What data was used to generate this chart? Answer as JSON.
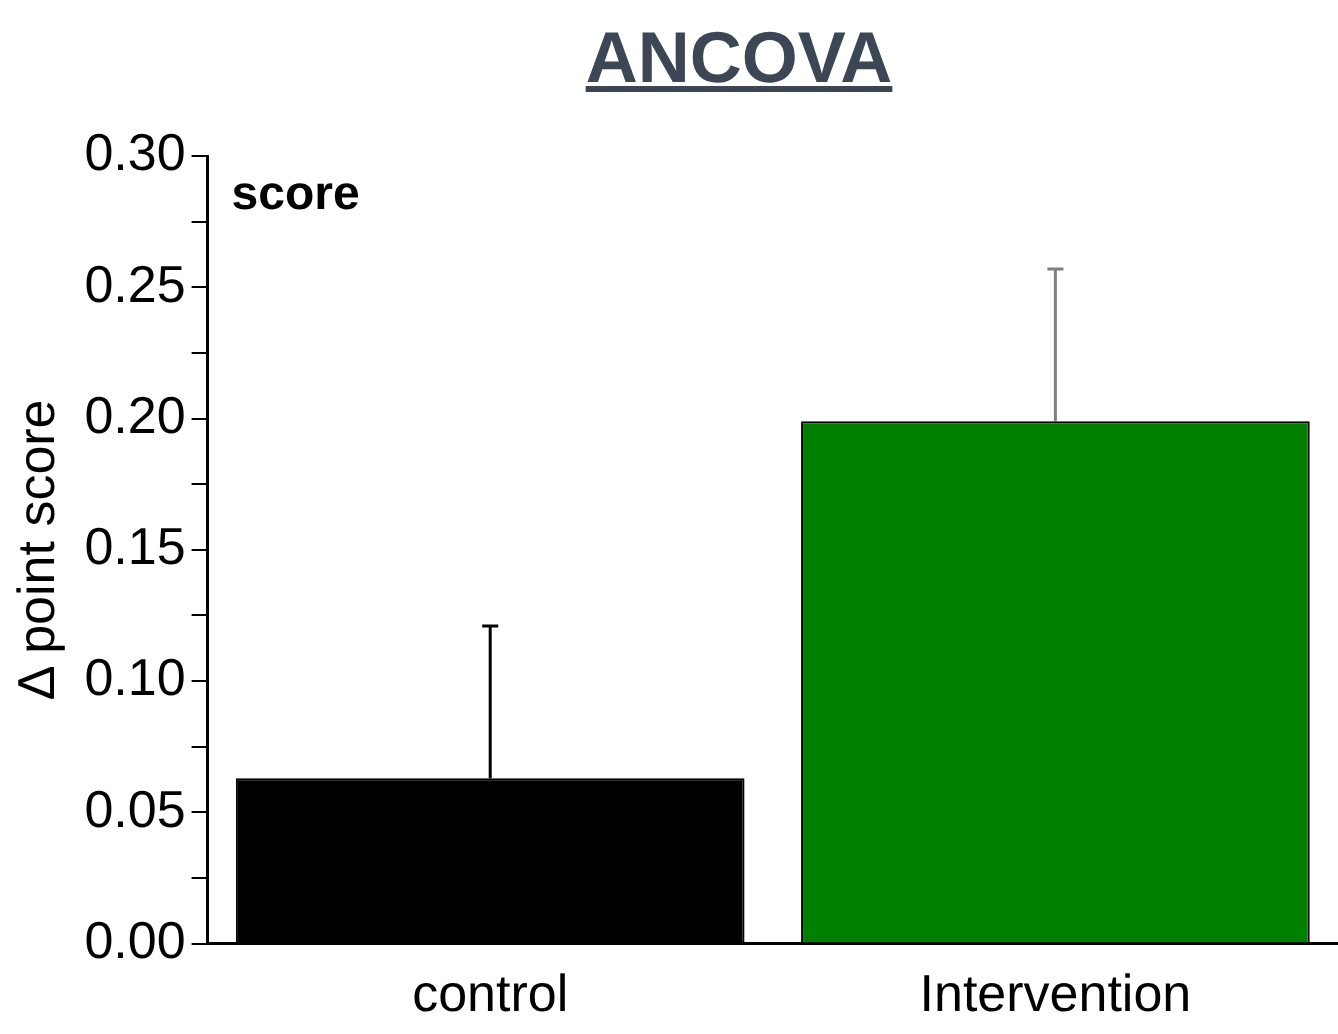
{
  "chart_data": {
    "type": "bar",
    "title": "ANCOVA",
    "ylabel": "Δ point score",
    "annotations": [
      "score"
    ],
    "categories": [
      "control",
      "Intervention"
    ],
    "values": [
      0.063,
      0.199
    ],
    "colors": [
      "#000000",
      "#008000"
    ],
    "errors": [
      [
        0.063,
        0.121
      ],
      [
        0.199,
        0.257
      ]
    ],
    "ylim": [
      0,
      0.3
    ],
    "yticks": [
      {
        "value": 0,
        "label": "0.00"
      },
      {
        "value": 0.025,
        "label": null
      },
      {
        "value": 0.05,
        "label": "0.05"
      },
      {
        "value": 0.075,
        "label": null
      },
      {
        "value": 0.1,
        "label": "0.10"
      },
      {
        "value": 0.125,
        "label": null
      },
      {
        "value": 0.15,
        "label": "0.15"
      },
      {
        "value": 0.175,
        "label": null
      },
      {
        "value": 0.2,
        "label": "0.20"
      },
      {
        "value": 0.225,
        "label": null
      },
      {
        "value": 0.25,
        "label": "0.25"
      },
      {
        "value": 0.275,
        "label": null
      },
      {
        "value": 0.3,
        "label": "0.30"
      }
    ],
    "grid": false,
    "legend": false
  }
}
